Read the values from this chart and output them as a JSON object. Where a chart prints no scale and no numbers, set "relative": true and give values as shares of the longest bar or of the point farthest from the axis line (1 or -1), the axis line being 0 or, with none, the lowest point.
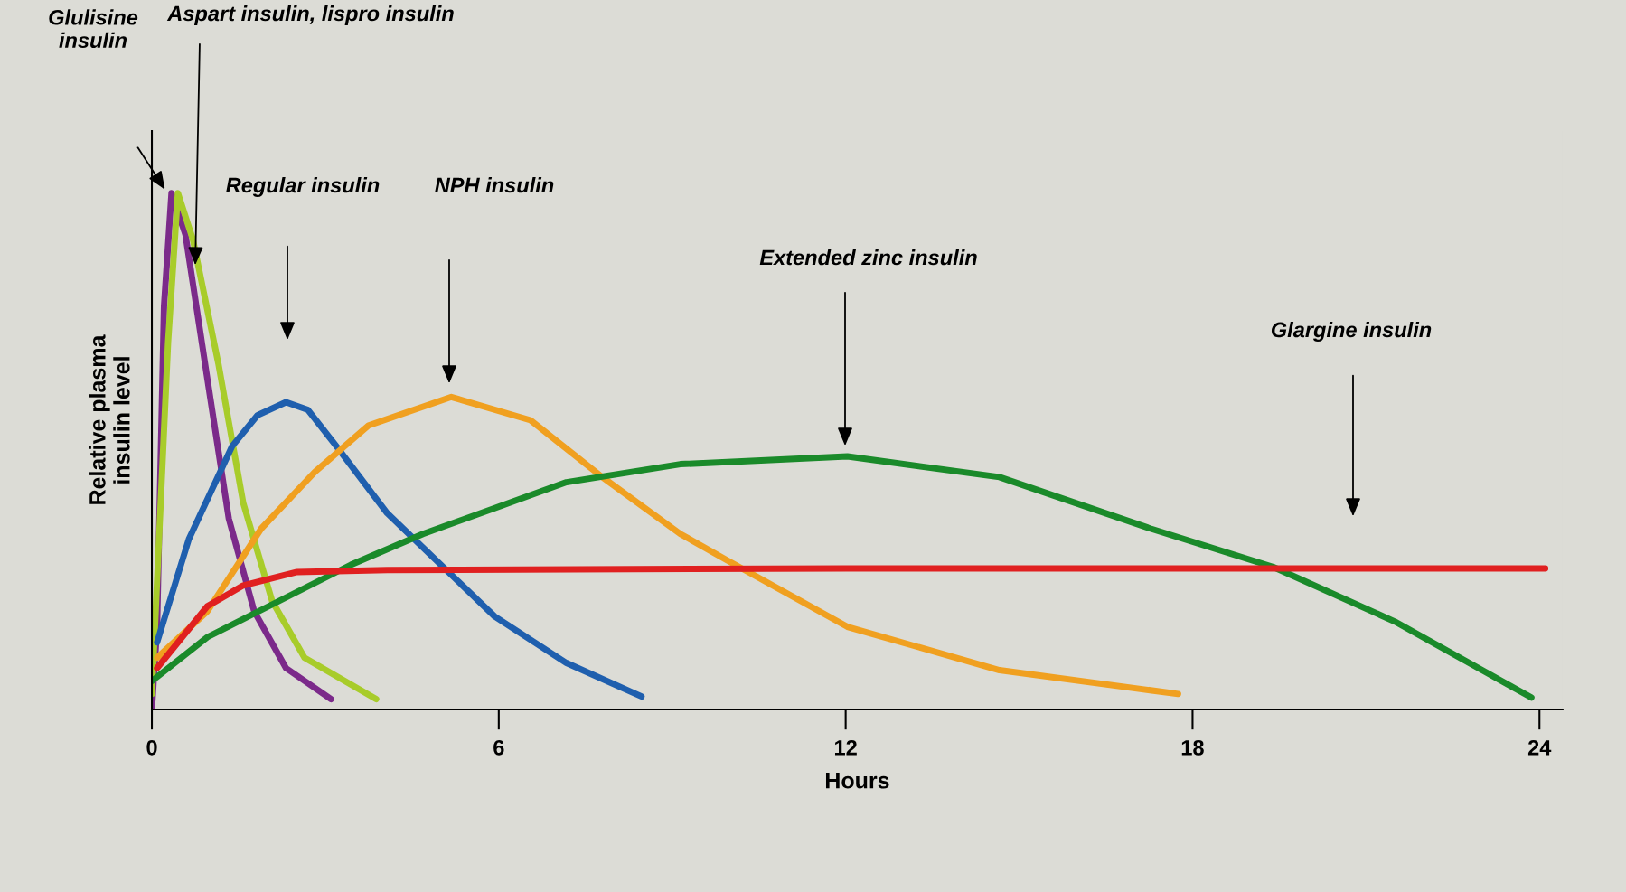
{
  "chart_data": {
    "type": "line",
    "relative": true,
    "xlabel": "Hours",
    "ylabel": "Relative plasma\ninsulin level",
    "xlim": [
      0,
      24.4
    ],
    "xticks": [
      0,
      6,
      12,
      18,
      24
    ],
    "grid": false,
    "legend": false,
    "marker": "none",
    "line_style": "solid",
    "series": [
      {
        "color": "#7b2a8a",
        "x": [
          0,
          0.09,
          0.21,
          0.34,
          0.58,
          0.96,
          1.33,
          1.77,
          2.32,
          3.1
        ],
        "values": [
          0,
          0.16,
          0.78,
          1.0,
          0.92,
          0.64,
          0.37,
          0.19,
          0.08,
          0.02
        ]
      },
      {
        "color": "#a8cc2a",
        "x": [
          0,
          0.28,
          0.45,
          0.71,
          1.15,
          1.58,
          2.08,
          2.64,
          3.88
        ],
        "values": [
          0.03,
          0.71,
          1.0,
          0.91,
          0.67,
          0.4,
          0.21,
          0.1,
          0.02
        ]
      },
      {
        "color": "#1f5fae",
        "x": [
          0.09,
          0.64,
          1.39,
          1.83,
          2.32,
          2.7,
          3.19,
          4.07,
          5.0,
          5.93,
          7.17,
          8.47
        ],
        "values": [
          0.13,
          0.33,
          0.51,
          0.57,
          0.595,
          0.58,
          0.51,
          0.38,
          0.28,
          0.18,
          0.09,
          0.025
        ]
      },
      {
        "color": "#f0a020",
        "x": [
          0.09,
          0.96,
          1.89,
          2.82,
          3.75,
          5.18,
          6.55,
          7.79,
          9.14,
          9.93,
          12.03,
          14.66,
          17.75
        ],
        "values": [
          0.1,
          0.19,
          0.35,
          0.46,
          0.55,
          0.605,
          0.56,
          0.45,
          0.34,
          0.29,
          0.16,
          0.076,
          0.03
        ]
      },
      {
        "color": "#1a8a2a",
        "x": [
          0,
          0.96,
          2.2,
          3.44,
          4.69,
          5.93,
          7.17,
          9.14,
          12.03,
          14.66,
          17.28,
          19.39,
          21.5,
          23.86
        ],
        "values": [
          0.055,
          0.14,
          0.21,
          0.28,
          0.34,
          0.39,
          0.44,
          0.475,
          0.49,
          0.45,
          0.35,
          0.276,
          0.17,
          0.023
        ]
      },
      {
        "color": "#e02020",
        "x": [
          0.09,
          0.96,
          1.58,
          2.51,
          4.07,
          12,
          20.9,
          24.1
        ],
        "values": [
          0.08,
          0.2,
          0.24,
          0.266,
          0.27,
          0.273,
          0.273,
          0.273
        ]
      }
    ],
    "annotations": [
      "Glulisine\ninsulin",
      "Aspart insulin, lispro insulin",
      "Regular insulin",
      "NPH insulin",
      "Extended zinc insulin",
      "Glargine insulin"
    ]
  }
}
